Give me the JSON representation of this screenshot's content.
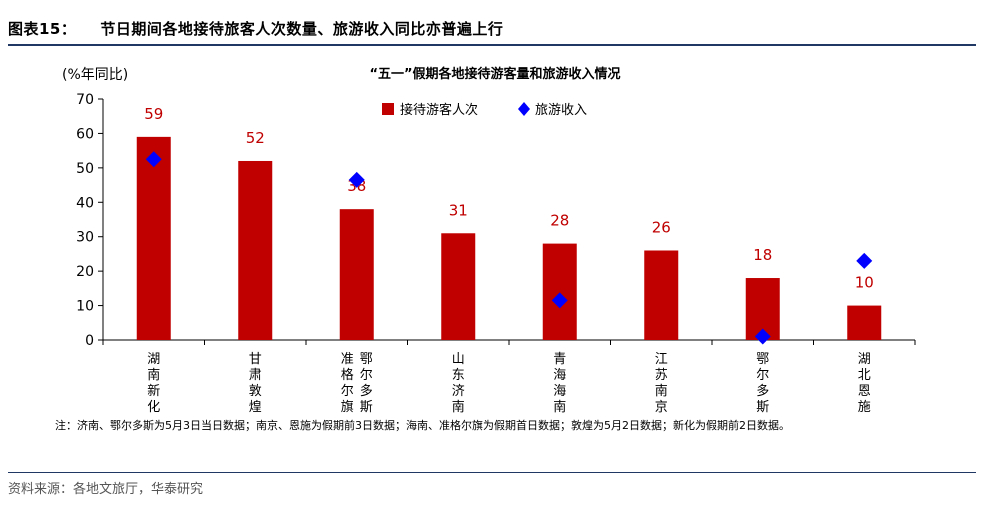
{
  "figure": {
    "number": "图表15：",
    "title": "节日期间各地接待旅客人次数量、旅游收入同比亦普遍上行"
  },
  "note": "注：济南、鄂尔多斯为5月3日当日数据；南京、恩施为假期前3日数据；海南、准格尔旗为假期首日数据；敦煌为5月2日数据；新化为假期前2日数据。",
  "source": "资料来源：各地文旅厅，华泰研究",
  "colors": {
    "bar": "#c00000",
    "diamond": "#0000ff",
    "rule": "#1f3864"
  },
  "chart_data": {
    "type": "bar",
    "title": "“五一”假期各地接待游客量和旅游收入情况",
    "unit_label": "(%年同比)",
    "categories": [
      "湖南新化",
      "甘肃敦煌",
      "准格尔旗鄂尔多斯",
      "山东济南",
      "青海海南",
      "江苏南京",
      "鄂尔多斯",
      "湖北恩施"
    ],
    "category_lines": [
      [
        "湖南新化"
      ],
      [
        "甘肃敦煌"
      ],
      [
        "准格尔旗",
        "鄂尔多斯"
      ],
      [
        "山东济南"
      ],
      [
        "青海海南"
      ],
      [
        "江苏南京"
      ],
      [
        "鄂尔多斯"
      ],
      [
        "湖北恩施"
      ]
    ],
    "series": [
      {
        "name": "接待游客人次",
        "kind": "bar",
        "values": [
          59,
          52,
          38,
          31,
          28,
          26,
          18,
          10
        ],
        "labels": [
          "59",
          "52",
          "38",
          "31",
          "28",
          "26",
          "18",
          "10"
        ]
      },
      {
        "name": "旅游收入",
        "kind": "diamond",
        "values": [
          52.5,
          null,
          46.5,
          null,
          11.5,
          null,
          1,
          23
        ]
      }
    ],
    "ylim": [
      0,
      70
    ],
    "yticks": [
      0,
      10,
      20,
      30,
      40,
      50,
      60,
      70
    ],
    "legend_position": "top-right",
    "grid": false
  }
}
